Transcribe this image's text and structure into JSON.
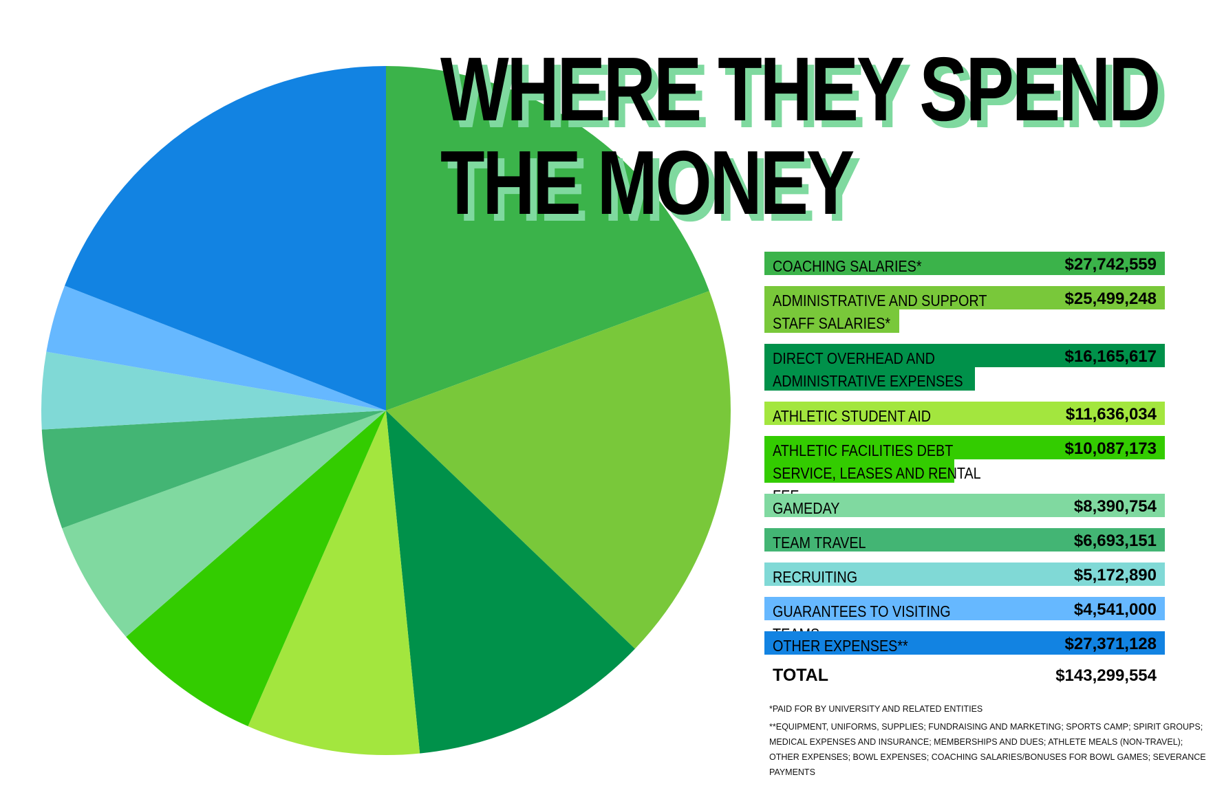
{
  "title": {
    "line1": "WHERE THEY SPEND",
    "line2": "THE MONEY",
    "shadow_color": "#7fd99f"
  },
  "chart_data": {
    "type": "pie",
    "start_angle_deg": 0,
    "direction": "clockwise",
    "slices": [
      {
        "label": "COACHING SALARIES*",
        "value": 27742559,
        "display": "$27,742,559",
        "color": "#3bb34a"
      },
      {
        "label": "ADMINISTRATIVE AND SUPPORT STAFF SALARIES*",
        "value": 25499248,
        "display": "$25,499,248",
        "color": "#79c83a"
      },
      {
        "label": "DIRECT OVERHEAD AND ADMINISTRATIVE EXPENSES",
        "value": 16165617,
        "display": "$16,165,617",
        "color": "#00914a"
      },
      {
        "label": "ATHLETIC STUDENT AID",
        "value": 11636034,
        "display": "$11,636,034",
        "color": "#a3e63e"
      },
      {
        "label": "ATHLETIC FACILITIES DEBT SERVICE, LEASES AND RENTAL FEE",
        "value": 10087173,
        "display": "$10,087,173",
        "color": "#33cc00"
      },
      {
        "label": "GAMEDAY",
        "value": 8390754,
        "display": "$8,390,754",
        "color": "#80d9a0"
      },
      {
        "label": "TEAM TRAVEL",
        "value": 6693151,
        "display": "$6,693,151",
        "color": "#43b574"
      },
      {
        "label": "RECRUITING",
        "value": 5172890,
        "display": "$5,172,890",
        "color": "#80d9d6"
      },
      {
        "label": "GUARANTEES TO VISITING TEAMS",
        "value": 4541000,
        "display": "$4,541,000",
        "color": "#66b8ff"
      },
      {
        "label": "OTHER EXPENSES**",
        "value": 27371128,
        "display": "$27,371,128",
        "color": "#1283e2"
      }
    ],
    "total": {
      "label": "TOTAL",
      "value": 143299554,
      "display": "$143,299,554"
    }
  },
  "notes": {
    "note1": "*PAID FOR BY UNIVERSITY AND RELATED ENTITIES",
    "note2": "**EQUIPMENT, UNIFORMS, SUPPLIES; FUNDRAISING AND MARKETING; SPORTS CAMP; SPIRIT GROUPS; MEDICAL EXPENSES AND INSURANCE; MEMBERSHIPS AND DUES; ATHLETE MEALS (NON-TRAVEL); OTHER EXPENSES; BOWL EXPENSES; COACHING SALARIES/BONUSES FOR BOWL GAMES; SEVERANCE PAYMENTS"
  }
}
